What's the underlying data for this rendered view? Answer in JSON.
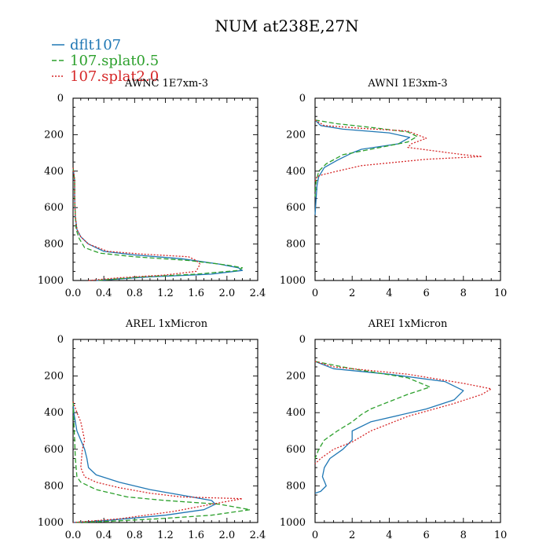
{
  "figure": {
    "title": "NUM at238E,27N",
    "legend": [
      {
        "label": "dflt107",
        "color": "#1f77b4",
        "dash": "solid"
      },
      {
        "label": "107.splat0.5",
        "color": "#2ca02c",
        "dash": "dashed"
      },
      {
        "label": "107.splat2.0",
        "color": "#d62728",
        "dash": "dotted"
      }
    ]
  },
  "chart_data": [
    {
      "type": "line",
      "title": "AWNC  1E7xm-3",
      "xlim": [
        0,
        2.4
      ],
      "ylim": [
        1000,
        0
      ],
      "xticks": [
        0,
        0.4,
        0.8,
        1.2,
        1.6,
        2.0,
        2.4
      ],
      "xtick_labels": [
        "0.0",
        "0.4",
        "0.8",
        "1.2",
        "1.6",
        "2.0",
        "2.4"
      ],
      "yticks": [
        0,
        200,
        400,
        600,
        800,
        1000
      ],
      "ytick_labels": [
        "0",
        "200",
        "400",
        "600",
        "800",
        "1000"
      ],
      "series": [
        {
          "name": "dflt107",
          "x": [
            0,
            0.02,
            0.02,
            0.03,
            0.05,
            0.1,
            0.2,
            0.4,
            0.8,
            1.4,
            1.9,
            2.15,
            2.2,
            1.8,
            1.0,
            0.3
          ],
          "y": [
            380,
            450,
            550,
            650,
            720,
            760,
            800,
            840,
            860,
            880,
            910,
            930,
            945,
            965,
            980,
            1000
          ]
        },
        {
          "name": "107.splat0.5",
          "x": [
            0,
            0.02,
            0.02,
            0.03,
            0.04,
            0.08,
            0.15,
            0.35,
            0.8,
            1.5,
            2.0,
            2.2,
            2.15,
            1.6,
            0.9,
            0.3
          ],
          "y": [
            380,
            450,
            550,
            650,
            720,
            770,
            820,
            850,
            870,
            890,
            915,
            930,
            945,
            965,
            980,
            1000
          ]
        },
        {
          "name": "107.splat2.0",
          "x": [
            0,
            0.02,
            0.02,
            0.03,
            0.05,
            0.1,
            0.2,
            0.45,
            0.9,
            1.5,
            1.6,
            1.65,
            1.6,
            1.2,
            0.6,
            0.2
          ],
          "y": [
            380,
            450,
            550,
            650,
            720,
            760,
            800,
            840,
            855,
            870,
            890,
            910,
            950,
            970,
            985,
            1000
          ]
        }
      ]
    },
    {
      "type": "line",
      "title": "AWNI  1E3xm-3",
      "xlim": [
        0,
        10
      ],
      "ylim": [
        1000,
        0
      ],
      "xticks": [
        0,
        2,
        4,
        6,
        8,
        10
      ],
      "xtick_labels": [
        "0",
        "2",
        "4",
        "6",
        "8",
        "10"
      ],
      "yticks": [
        0,
        200,
        400,
        600,
        800,
        1000
      ],
      "ytick_labels": [
        "0",
        "200",
        "400",
        "600",
        "800",
        "1000"
      ],
      "series": [
        {
          "name": "dflt107",
          "x": [
            0,
            0.3,
            1.5,
            4.0,
            5.1,
            4.5,
            2.5,
            2.0,
            1.2,
            0.5,
            0.2,
            0.1,
            0.05,
            0
          ],
          "y": [
            120,
            150,
            170,
            190,
            215,
            250,
            280,
            300,
            340,
            380,
            430,
            480,
            560,
            640
          ]
        },
        {
          "name": "107.splat0.5",
          "x": [
            0,
            1.2,
            3.0,
            5.0,
            5.5,
            5.0,
            3.0,
            1.5,
            0.6,
            0.2,
            0.05,
            0
          ],
          "y": [
            120,
            140,
            160,
            185,
            210,
            240,
            280,
            310,
            360,
            400,
            460,
            540
          ]
        },
        {
          "name": "107.splat2.0",
          "x": [
            0,
            0.5,
            2.5,
            5.0,
            6.0,
            5.2,
            5.0,
            8.0,
            9.0,
            6.0,
            2.5,
            1.2,
            0.4,
            0.1,
            0
          ],
          "y": [
            120,
            150,
            165,
            180,
            220,
            250,
            270,
            310,
            320,
            335,
            370,
            400,
            420,
            430,
            460
          ]
        }
      ]
    },
    {
      "type": "line",
      "title": "AREL  1xMicron",
      "xlim": [
        0,
        2.4
      ],
      "ylim": [
        1000,
        0
      ],
      "xticks": [
        0,
        0.4,
        0.8,
        1.2,
        1.6,
        2.0,
        2.4
      ],
      "xtick_labels": [
        "0.0",
        "0.4",
        "0.8",
        "1.2",
        "1.6",
        "2.0",
        "2.4"
      ],
      "yticks": [
        0,
        200,
        400,
        600,
        800,
        1000
      ],
      "ytick_labels": [
        "0",
        "200",
        "400",
        "600",
        "800",
        "1000"
      ],
      "series": [
        {
          "name": "dflt107",
          "x": [
            0,
            0.01,
            0.03,
            0.05,
            0.1,
            0.15,
            0.18,
            0.2,
            0.3,
            0.6,
            1.0,
            1.4,
            1.8,
            1.85,
            1.7,
            1.2,
            0.4,
            0
          ],
          "y": [
            340,
            400,
            450,
            500,
            550,
            600,
            650,
            700,
            740,
            780,
            820,
            850,
            880,
            900,
            930,
            960,
            990,
            1000
          ]
        },
        {
          "name": "107.splat0.5",
          "x": [
            0,
            0.01,
            0.02,
            0.03,
            0.04,
            0.05,
            0.1,
            0.3,
            0.7,
            1.2,
            1.9,
            2.3,
            1.8,
            1.1,
            0.4,
            0
          ],
          "y": [
            340,
            450,
            550,
            650,
            700,
            750,
            780,
            820,
            860,
            880,
            900,
            930,
            960,
            980,
            995,
            1000
          ]
        },
        {
          "name": "107.splat2.0",
          "x": [
            0,
            0.05,
            0.1,
            0.15,
            0.12,
            0.1,
            0.15,
            0.3,
            0.6,
            1.0,
            1.4,
            2.2,
            1.8,
            1.3,
            0.6,
            0
          ],
          "y": [
            340,
            400,
            450,
            550,
            600,
            700,
            750,
            780,
            810,
            840,
            860,
            870,
            900,
            940,
            980,
            1000
          ]
        }
      ]
    },
    {
      "type": "line",
      "title": "AREI  1xMicron",
      "xlim": [
        0,
        10
      ],
      "ylim": [
        1000,
        0
      ],
      "xticks": [
        0,
        2,
        4,
        6,
        8,
        10
      ],
      "xtick_labels": [
        "0",
        "2",
        "4",
        "6",
        "8",
        "10"
      ],
      "yticks": [
        0,
        200,
        400,
        600,
        800,
        1000
      ],
      "ytick_labels": [
        "0",
        "200",
        "400",
        "600",
        "800",
        "1000"
      ],
      "series": [
        {
          "name": "dflt107",
          "x": [
            0,
            1.0,
            4.0,
            7.0,
            8.0,
            7.5,
            6.0,
            3.0,
            2.0,
            2.0,
            1.5,
            0.8,
            0.5,
            0.4,
            0.6,
            0.3,
            0
          ],
          "y": [
            120,
            160,
            190,
            230,
            280,
            330,
            380,
            450,
            500,
            550,
            600,
            650,
            700,
            750,
            800,
            830,
            840
          ]
        },
        {
          "name": "107.splat0.5",
          "x": [
            0,
            2.0,
            5.0,
            6.2,
            5.0,
            3.0,
            2.5,
            2.0,
            1.2,
            0.5,
            0.2,
            0
          ],
          "y": [
            120,
            160,
            210,
            260,
            300,
            380,
            410,
            450,
            500,
            550,
            600,
            650
          ]
        },
        {
          "name": "107.splat2.0",
          "x": [
            0,
            1.0,
            5.0,
            8.0,
            9.5,
            9.0,
            7.5,
            5.0,
            3.0,
            2.0,
            1.0,
            0.3,
            0
          ],
          "y": [
            120,
            150,
            190,
            240,
            270,
            300,
            350,
            420,
            500,
            560,
            600,
            650,
            680
          ]
        }
      ]
    }
  ]
}
